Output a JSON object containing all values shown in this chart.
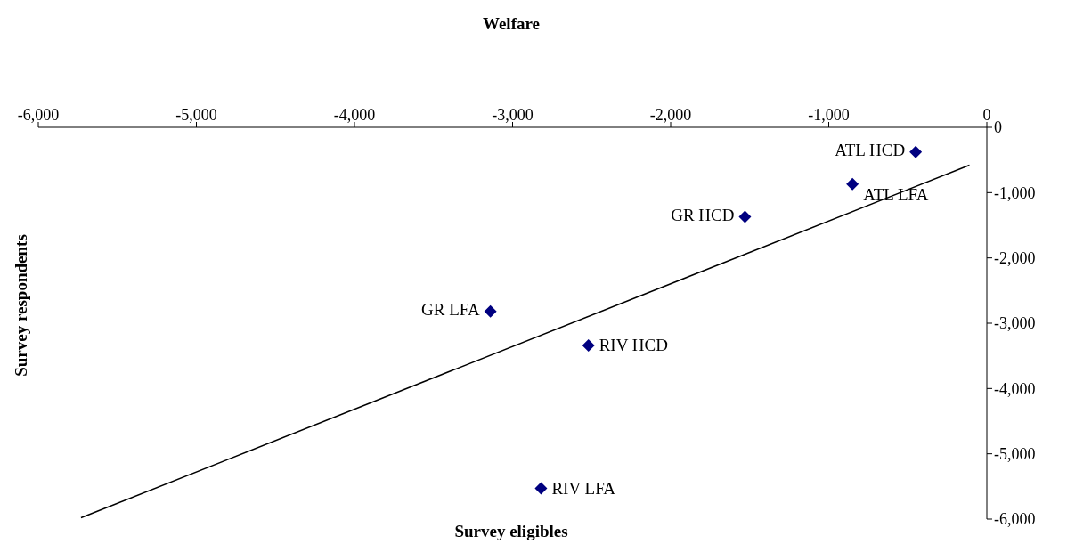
{
  "chart_data": {
    "type": "scatter",
    "title": "Welfare",
    "xlabel": "Survey eligibles",
    "ylabel": "Survey respondents",
    "xlim": [
      -6000,
      0
    ],
    "xticks": [
      {
        "value": -6000,
        "label": "-6,000"
      },
      {
        "value": -5000,
        "label": "-5,000"
      },
      {
        "value": -4000,
        "label": "-4,000"
      },
      {
        "value": -3000,
        "label": "-3,000"
      },
      {
        "value": -2000,
        "label": "-2,000"
      },
      {
        "value": -1000,
        "label": "-1,000"
      },
      0
    ],
    "ylim": [
      -6000,
      0
    ],
    "yticks": [
      {
        "value": -6000,
        "label": "-6,000"
      },
      {
        "value": -5000,
        "label": "-5,000"
      },
      {
        "value": -4000,
        "label": "-4,000"
      },
      {
        "value": -3000,
        "label": "-3,000"
      },
      {
        "value": -2000,
        "label": "-2,000"
      },
      {
        "value": -1000,
        "label": "-1,000"
      },
      0
    ],
    "grid": false,
    "legend": false,
    "series": [
      {
        "type": "scatter",
        "marker": "diamond",
        "color": "#000080",
        "x": [
          -450,
          -850,
          -1530,
          -3140,
          -2520,
          -2820
        ],
        "values": [
          -380,
          -870,
          -1370,
          -2820,
          -3340,
          -5530
        ]
      },
      {
        "type": "line",
        "marker": "none",
        "color": "#000000",
        "x": [
          -5730,
          -110
        ],
        "values": [
          -5980,
          -580
        ]
      }
    ],
    "annotations": [
      {
        "text": "ATL HCD",
        "x": -450,
        "y": -380
      },
      {
        "text": "ATL LFA",
        "x": -850,
        "y": -870
      },
      {
        "text": "GR HCD",
        "x": -1530,
        "y": -1370
      },
      {
        "text": "GR LFA",
        "x": -3140,
        "y": -2820
      },
      {
        "text": "RIV HCD",
        "x": -2520,
        "y": -3340
      },
      {
        "text": "RIV LFA",
        "x": -2820,
        "y": -5530
      }
    ]
  }
}
